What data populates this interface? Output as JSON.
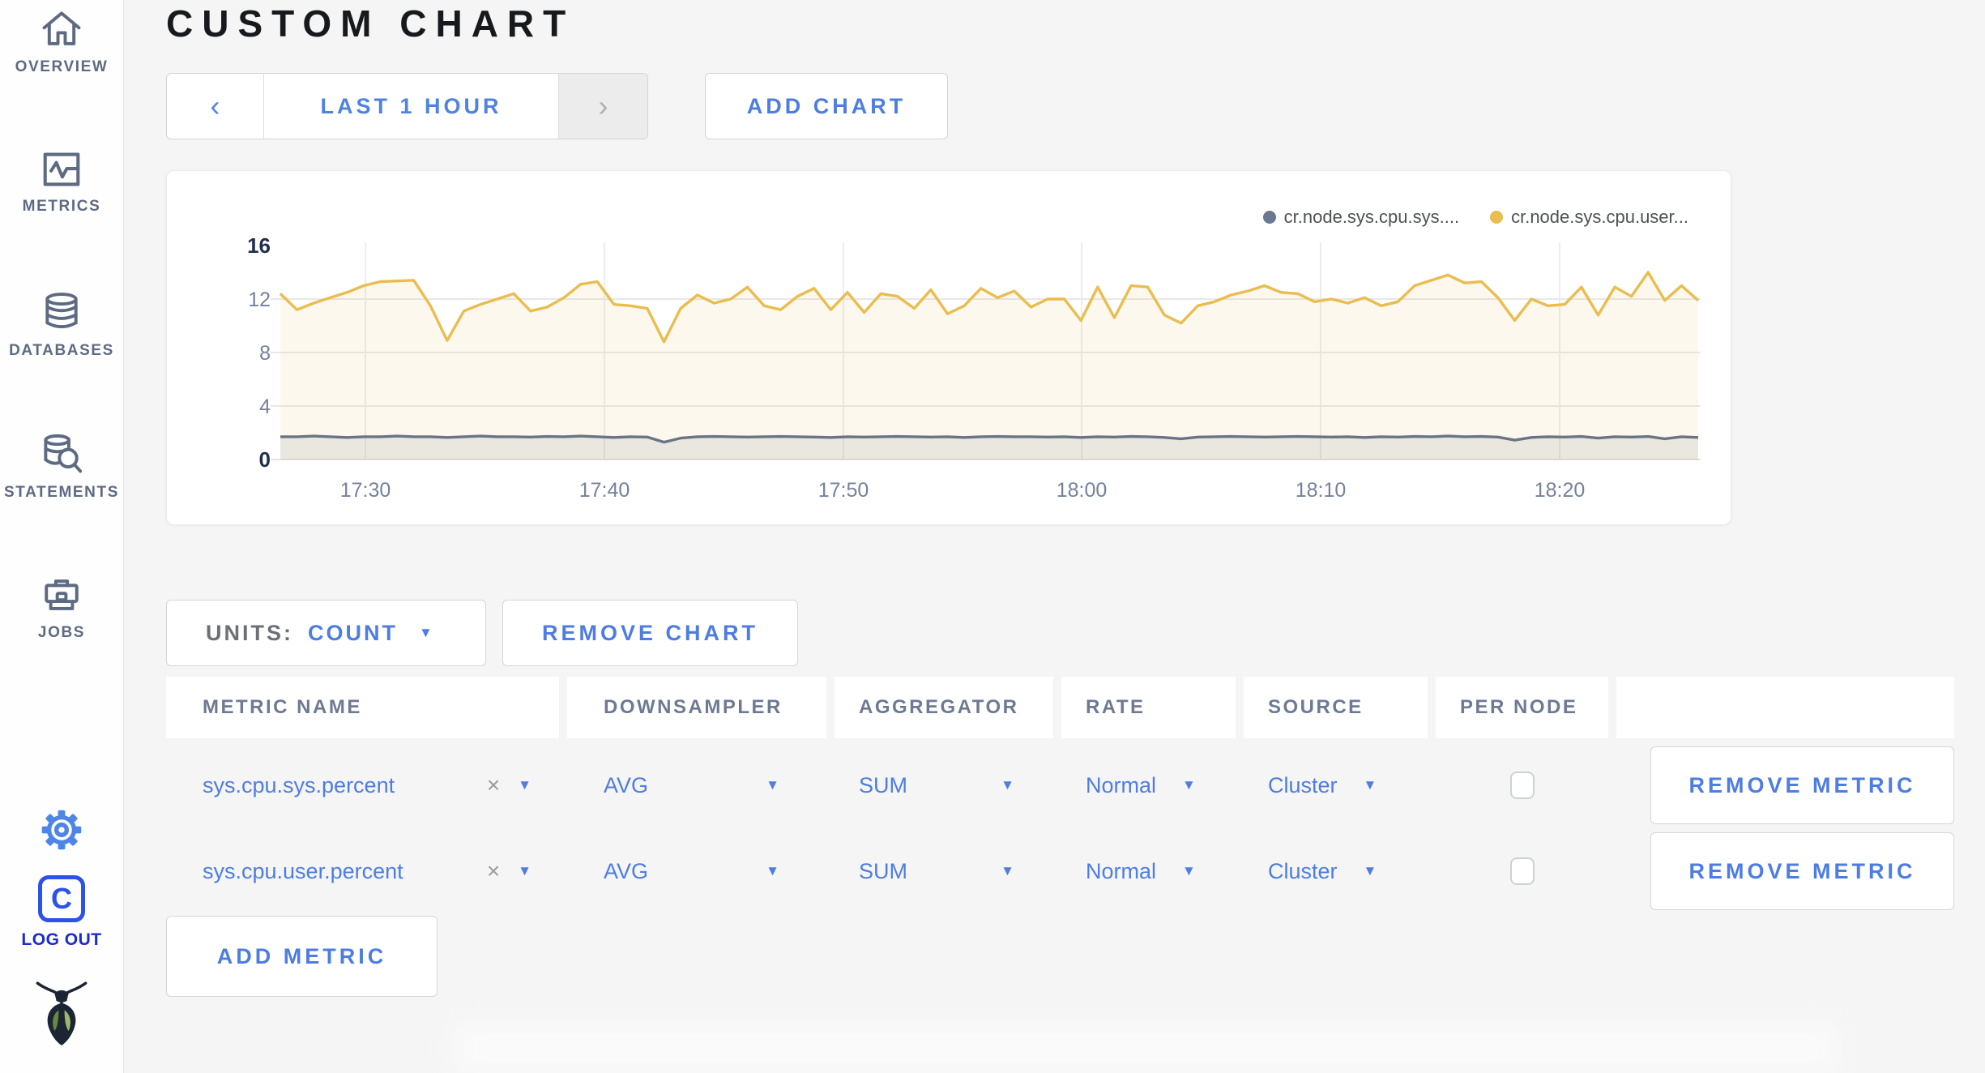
{
  "app": {
    "title": "CUSTOM CHART"
  },
  "sidebar": {
    "items": [
      {
        "label": "OVERVIEW",
        "icon": "home-icon"
      },
      {
        "label": "METRICS",
        "icon": "metrics-icon"
      },
      {
        "label": "DATABASES",
        "icon": "databases-icon"
      },
      {
        "label": "STATEMENTS",
        "icon": "statements-icon"
      },
      {
        "label": "JOBS",
        "icon": "jobs-icon"
      }
    ],
    "logout_label": "LOG OUT"
  },
  "toolbar": {
    "prev_symbol": "‹",
    "time_range_label": "LAST 1 HOUR",
    "next_symbol": "›",
    "add_chart_label": "ADD CHART"
  },
  "chart_controls": {
    "units_label": "UNITS:",
    "units_value": "COUNT",
    "remove_chart_label": "REMOVE CHART",
    "add_metric_label": "ADD METRIC"
  },
  "legend": [
    {
      "label": "cr.node.sys.cpu.sys....",
      "color": "#6b7693"
    },
    {
      "label": "cr.node.sys.cpu.user...",
      "color": "#e9bd4f"
    }
  ],
  "chart_data": {
    "type": "line",
    "x_ticks": [
      "17:30",
      "17:40",
      "17:50",
      "18:00",
      "18:10",
      "18:20"
    ],
    "x_range": [
      "17:26",
      "18:26"
    ],
    "y_ticks": [
      0,
      4,
      8,
      12,
      16
    ],
    "ylim": [
      0,
      16
    ],
    "grid": true,
    "legend_position": "top-right",
    "series": [
      {
        "name": "cr.node.sys.cpu.sys....",
        "color": "#6b7486",
        "fill": "rgba(107,116,134,0.13)",
        "values": [
          1.7,
          1.7,
          1.75,
          1.7,
          1.65,
          1.7,
          1.7,
          1.75,
          1.7,
          1.7,
          1.65,
          1.7,
          1.75,
          1.7,
          1.7,
          1.68,
          1.72,
          1.7,
          1.75,
          1.7,
          1.65,
          1.7,
          1.68,
          1.3,
          1.6,
          1.7,
          1.72,
          1.7,
          1.68,
          1.7,
          1.72,
          1.7,
          1.68,
          1.65,
          1.7,
          1.68,
          1.7,
          1.72,
          1.7,
          1.68,
          1.7,
          1.65,
          1.7,
          1.72,
          1.7,
          1.7,
          1.68,
          1.7,
          1.65,
          1.7,
          1.68,
          1.72,
          1.7,
          1.65,
          1.55,
          1.68,
          1.7,
          1.72,
          1.7,
          1.68,
          1.7,
          1.72,
          1.7,
          1.68,
          1.7,
          1.65,
          1.7,
          1.68,
          1.72,
          1.7,
          1.75,
          1.7,
          1.72,
          1.68,
          1.45,
          1.65,
          1.7,
          1.68,
          1.72,
          1.6,
          1.7,
          1.68,
          1.72,
          1.55,
          1.7,
          1.65
        ]
      },
      {
        "name": "cr.node.sys.cpu.user...",
        "color": "#e9bd4f",
        "fill": "rgba(233,189,79,0.10)",
        "values": [
          12.4,
          11.2,
          11.7,
          12.1,
          12.5,
          13.0,
          13.3,
          13.35,
          13.4,
          11.5,
          8.9,
          11.1,
          11.6,
          12.0,
          12.4,
          11.1,
          11.4,
          12.1,
          13.1,
          13.3,
          11.6,
          11.5,
          11.3,
          8.8,
          11.3,
          12.3,
          11.7,
          12.0,
          12.9,
          11.5,
          11.2,
          12.2,
          12.8,
          11.2,
          12.5,
          11.0,
          12.4,
          12.2,
          11.3,
          12.7,
          10.9,
          11.5,
          12.8,
          12.1,
          12.6,
          11.4,
          12.0,
          12.0,
          10.4,
          12.9,
          10.6,
          13.0,
          12.9,
          10.8,
          10.2,
          11.5,
          11.8,
          12.3,
          12.6,
          13.0,
          12.5,
          12.4,
          11.8,
          12.0,
          11.7,
          12.1,
          11.5,
          11.8,
          13.0,
          13.4,
          13.8,
          13.2,
          13.3,
          12.1,
          10.4,
          12.0,
          11.5,
          11.6,
          12.9,
          10.8,
          12.9,
          12.2,
          14.0,
          11.9,
          13.0,
          11.9
        ]
      }
    ]
  },
  "table": {
    "headers": [
      "METRIC NAME",
      "DOWNSAMPLER",
      "AGGREGATOR",
      "RATE",
      "SOURCE",
      "PER NODE",
      ""
    ],
    "clear_symbol": "×",
    "rows": [
      {
        "metric": "sys.cpu.sys.percent",
        "downsampler": "AVG",
        "aggregator": "SUM",
        "rate": "Normal",
        "source": "Cluster",
        "per_node_checked": false,
        "remove_label": "REMOVE METRIC"
      },
      {
        "metric": "sys.cpu.user.percent",
        "downsampler": "AVG",
        "aggregator": "SUM",
        "rate": "Normal",
        "source": "Cluster",
        "per_node_checked": false,
        "remove_label": "REMOVE METRIC"
      }
    ]
  },
  "colors": {
    "accent_blue": "#4d7de2",
    "logout_blue": "#2c52e8",
    "gear_blue": "#4e86e8",
    "nav_gray": "#5d6a82",
    "series_yellow": "#e9bd4f",
    "series_slate": "#6b7486",
    "grid": "#e8e8e8",
    "page_bg": "#f5f5f5"
  }
}
